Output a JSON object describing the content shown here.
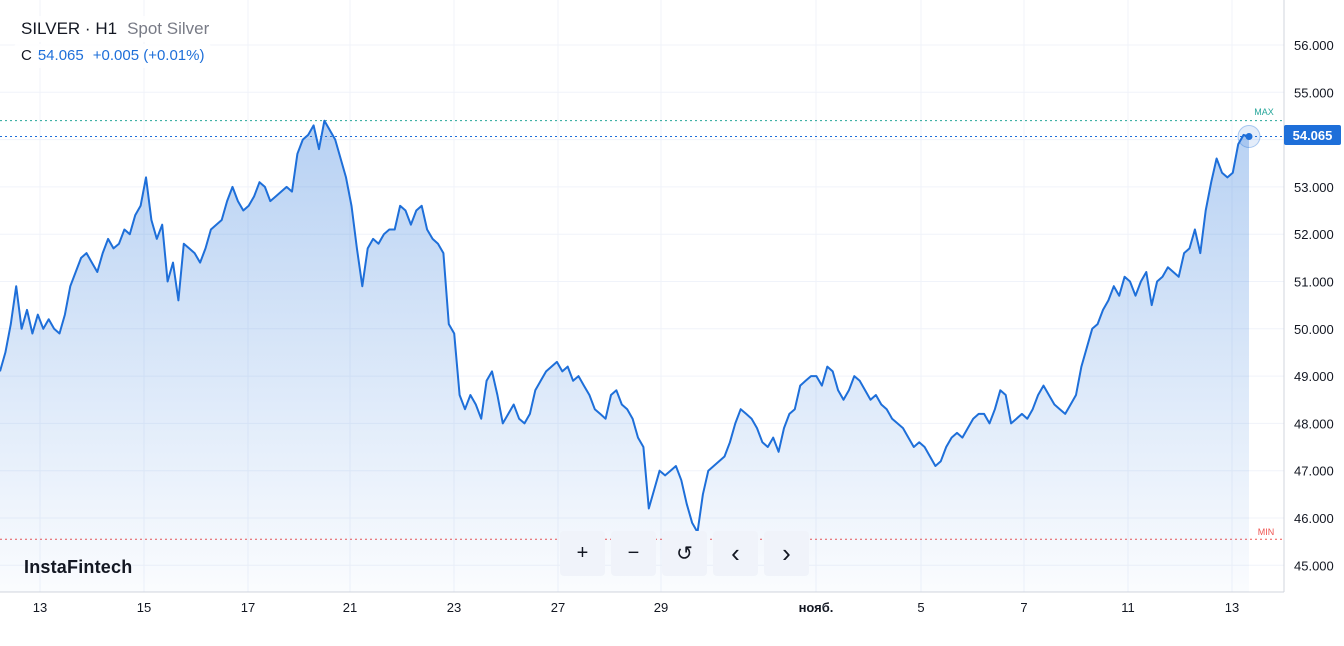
{
  "header": {
    "symbol": "SILVER · H1",
    "description": "Spot Silver",
    "close_label": "C",
    "close_value": "54.065",
    "change": "+0.005 (+0.01%)"
  },
  "brand": "InstaFintech",
  "controls": [
    {
      "name": "zoom-in-button",
      "icon": "plus-icon",
      "glyph": "+"
    },
    {
      "name": "zoom-out-button",
      "icon": "minus-icon",
      "glyph": "−"
    },
    {
      "name": "reset-button",
      "icon": "reset-icon",
      "glyph": "↺"
    },
    {
      "name": "scroll-left-button",
      "icon": "chevron-left-icon",
      "glyph": "‹"
    },
    {
      "name": "scroll-right-button",
      "icon": "chevron-right-icon",
      "glyph": "›"
    }
  ],
  "price_tag": "54.065",
  "max_label": "MAX",
  "min_label": "MIN",
  "colors": {
    "line": "#1e6fd9",
    "max": "#26a69a",
    "min": "#ef5350",
    "accent": "#1e6fd9"
  },
  "chart_data": {
    "type": "area",
    "ylim": [
      44.6,
      56.6
    ],
    "grid": true,
    "y_ticks": [
      "56.000",
      "55.000",
      "54.000",
      "53.000",
      "52.000",
      "51.000",
      "50.000",
      "49.000",
      "48.000",
      "47.000",
      "46.000",
      "45.000"
    ],
    "x_ticks": [
      "13",
      "15",
      "17",
      "21",
      "23",
      "27",
      "29",
      "нояб.",
      "5",
      "7",
      "11",
      "13"
    ],
    "max_level": 54.4,
    "min_level": 45.55,
    "last_value": 54.065,
    "series": [
      {
        "values": [
          49.1,
          49.5,
          50.1,
          50.9,
          50.0,
          50.4,
          49.9,
          50.3,
          50.0,
          50.2,
          50.0,
          49.9,
          50.3,
          50.9,
          51.2,
          51.5,
          51.6,
          51.4,
          51.2,
          51.6,
          51.9,
          51.7,
          51.8,
          52.1,
          52.0,
          52.4,
          52.6,
          53.2,
          52.3,
          51.9,
          52.2,
          51.0,
          51.4,
          50.6,
          51.8,
          51.7,
          51.6,
          51.4,
          51.7,
          52.1,
          52.2,
          52.3,
          52.7,
          53.0,
          52.7,
          52.5,
          52.6,
          52.8,
          53.1,
          53.0,
          52.7,
          52.8,
          52.9,
          53.0,
          52.9,
          53.7,
          54.0,
          54.1,
          54.3,
          53.8,
          54.4,
          54.2,
          54.0,
          53.6,
          53.2,
          52.6,
          51.7,
          50.9,
          51.7,
          51.9,
          51.8,
          52.0,
          52.1,
          52.1,
          52.6,
          52.5,
          52.2,
          52.5,
          52.6,
          52.1,
          51.9,
          51.8,
          51.6,
          50.1,
          49.9,
          48.6,
          48.3,
          48.6,
          48.4,
          48.1,
          48.9,
          49.1,
          48.6,
          48.0,
          48.2,
          48.4,
          48.1,
          48.0,
          48.2,
          48.7,
          48.9,
          49.1,
          49.2,
          49.3,
          49.1,
          49.2,
          48.9,
          49.0,
          48.8,
          48.6,
          48.3,
          48.2,
          48.1,
          48.6,
          48.7,
          48.4,
          48.3,
          48.1,
          47.7,
          47.5,
          46.2,
          46.6,
          47.0,
          46.9,
          47.0,
          47.1,
          46.8,
          46.3,
          45.9,
          45.7,
          46.5,
          47.0,
          47.1,
          47.2,
          47.3,
          47.6,
          48.0,
          48.3,
          48.2,
          48.1,
          47.9,
          47.6,
          47.5,
          47.7,
          47.4,
          47.9,
          48.2,
          48.3,
          48.8,
          48.9,
          49.0,
          49.0,
          48.8,
          49.2,
          49.1,
          48.7,
          48.5,
          48.7,
          49.0,
          48.9,
          48.7,
          48.5,
          48.6,
          48.4,
          48.3,
          48.1,
          48.0,
          47.9,
          47.7,
          47.5,
          47.6,
          47.5,
          47.3,
          47.1,
          47.2,
          47.5,
          47.7,
          47.8,
          47.7,
          47.9,
          48.1,
          48.2,
          48.2,
          48.0,
          48.3,
          48.7,
          48.6,
          48.0,
          48.1,
          48.2,
          48.1,
          48.3,
          48.6,
          48.8,
          48.6,
          48.4,
          48.3,
          48.2,
          48.4,
          48.6,
          49.2,
          49.6,
          50.0,
          50.1,
          50.4,
          50.6,
          50.9,
          50.7,
          51.1,
          51.0,
          50.7,
          51.0,
          51.2,
          50.5,
          51.0,
          51.1,
          51.3,
          51.2,
          51.1,
          51.6,
          51.7,
          52.1,
          51.6,
          52.5,
          53.1,
          53.6,
          53.3,
          53.2,
          53.3,
          53.9,
          54.1,
          54.065
        ]
      }
    ]
  }
}
